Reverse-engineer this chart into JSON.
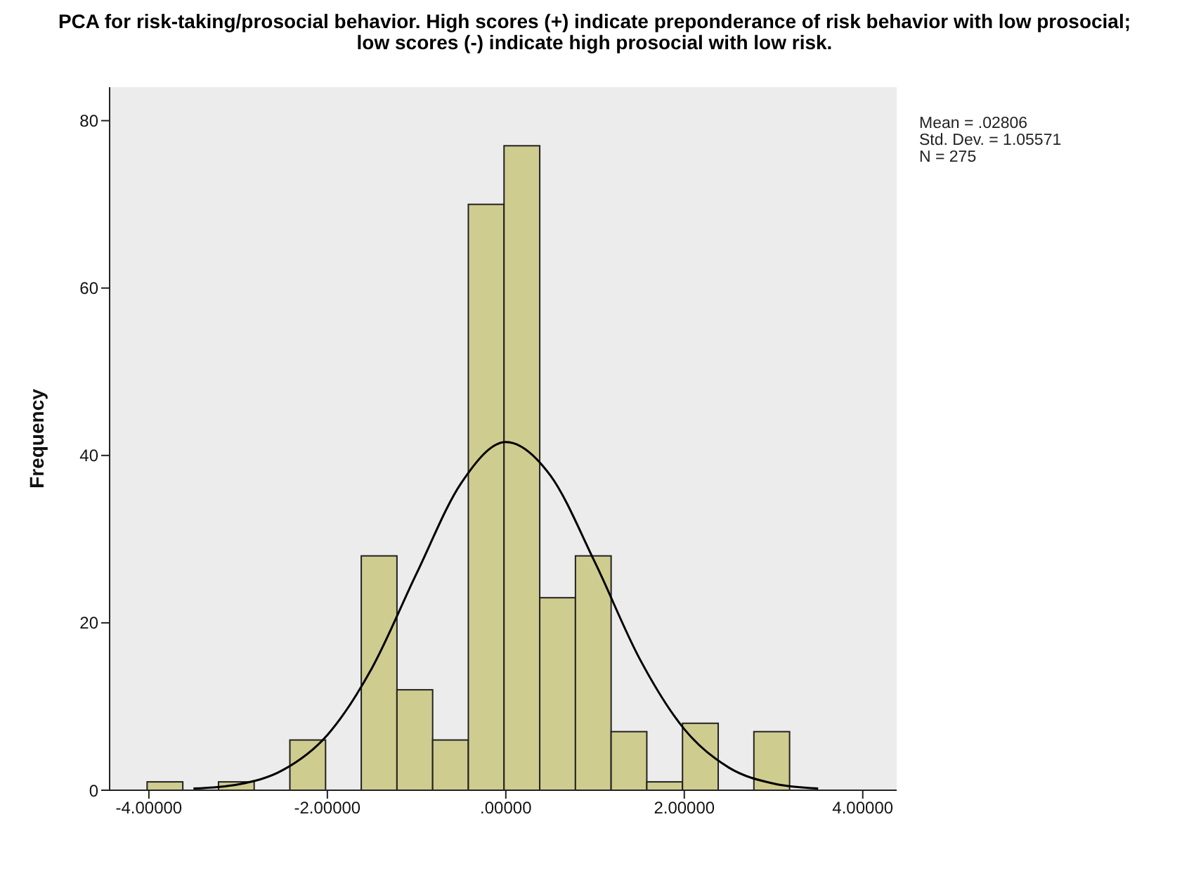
{
  "chart_data": {
    "type": "histogram",
    "title": "PCA for risk-taking/prosocial behavior. High scores (+) indicate preponderance of risk behavior with low prosocial; low scores (-) indicate high prosocial with low risk.",
    "ylabel": "Frequency",
    "bins": [
      -4.02,
      -3.62,
      -3.22,
      -2.82,
      -2.42,
      -2.02,
      -1.62,
      -1.22,
      -0.82,
      -0.42,
      -0.02,
      0.38,
      0.78,
      1.18,
      1.58,
      1.98,
      2.38,
      2.78,
      3.18
    ],
    "values": [
      1,
      0,
      1,
      0,
      6,
      0,
      28,
      12,
      6,
      70,
      77,
      23,
      28,
      7,
      1,
      8,
      0,
      7
    ],
    "color": "#cfcc8f",
    "series": [
      {
        "type": "line",
        "color": "#000000",
        "x": [
          -3.5,
          -3,
          -2.5,
          -2,
          -1.5,
          -1,
          -0.5,
          0,
          0.5,
          1,
          1.5,
          2,
          2.5,
          3,
          3.5
        ],
        "values": [
          0.2,
          0.7,
          2.4,
          6.6,
          14.6,
          25.9,
          36.7,
          41.6,
          37.6,
          27.2,
          15.7,
          7.3,
          2.7,
          0.8,
          0.2
        ]
      }
    ],
    "xlim": [
      -4.44,
      4.38
    ],
    "xticks": [
      {
        "value": -4,
        "label": "-4.00000"
      },
      {
        "value": -2,
        "label": "-2.00000"
      },
      {
        "value": 0,
        "label": ".00000"
      },
      {
        "value": 2,
        "label": "2.00000"
      },
      {
        "value": 4,
        "label": "4.00000"
      }
    ],
    "ylim": [
      0,
      84
    ],
    "yticks": [
      0,
      20,
      40,
      60,
      80
    ],
    "annotations": [
      "Mean = .02806",
      "Std. Dev. = 1.05571",
      "N = 275"
    ]
  }
}
